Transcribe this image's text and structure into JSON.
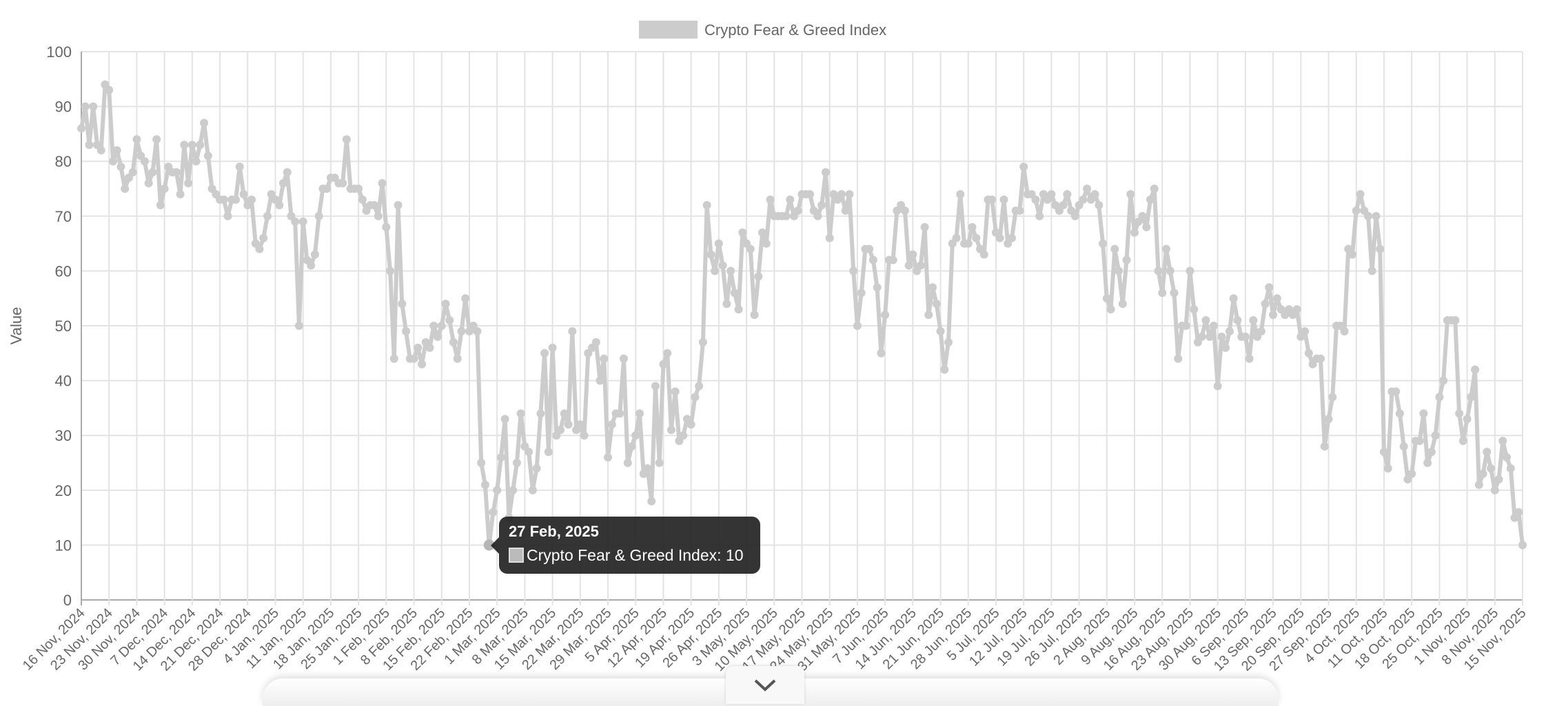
{
  "chart_data": {
    "type": "line",
    "legend": {
      "label": "Crypto Fear & Greed Index",
      "placement": "top-center"
    },
    "series_color": "#cccccc",
    "ylabel": "Value",
    "xlabel": "",
    "ylim": [
      0,
      100
    ],
    "y_ticks": [
      "0",
      "10",
      "20",
      "30",
      "40",
      "50",
      "60",
      "70",
      "80",
      "90",
      "100"
    ],
    "grid": true,
    "x_frequency": "daily",
    "x_tick_labels": [
      "16 Nov, 2024",
      "23 Nov, 2024",
      "30 Nov, 2024",
      "7 Dec, 2024",
      "14 Dec, 2024",
      "21 Dec, 2024",
      "28 Dec, 2024",
      "4 Jan, 2025",
      "11 Jan, 2025",
      "18 Jan, 2025",
      "25 Jan, 2025",
      "1 Feb, 2025",
      "8 Feb, 2025",
      "15 Feb, 2025",
      "22 Feb, 2025",
      "1 Mar, 2025",
      "8 Mar, 2025",
      "15 Mar, 2025",
      "22 Mar, 2025",
      "29 Mar, 2025",
      "5 Apr, 2025",
      "12 Apr, 2025",
      "19 Apr, 2025",
      "26 Apr, 2025",
      "3 May, 2025",
      "10 May, 2025",
      "17 May, 2025",
      "24 May, 2025",
      "31 May, 2025",
      "7 Jun, 2025",
      "14 Jun, 2025",
      "21 Jun, 2025",
      "28 Jun, 2025",
      "5 Jul, 2025",
      "12 Jul, 2025",
      "19 Jul, 2025",
      "26 Jul, 2025",
      "2 Aug, 2025",
      "9 Aug, 2025",
      "16 Aug, 2025",
      "23 Aug, 2025",
      "30 Aug, 2025",
      "6 Sep, 2025",
      "13 Sep, 2025",
      "20 Sep, 2025",
      "27 Sep, 2025",
      "4 Oct, 2025",
      "11 Oct, 2025",
      "18 Oct, 2025",
      "25 Oct, 2025",
      "1 Nov, 2025",
      "8 Nov, 2025",
      "15 Nov, 2025"
    ],
    "values": [
      86,
      90,
      83,
      90,
      83,
      82,
      94,
      93,
      80,
      82,
      79,
      75,
      77,
      78,
      84,
      81,
      80,
      76,
      78,
      84,
      72,
      75,
      79,
      78,
      78,
      74,
      83,
      76,
      83,
      80,
      83,
      87,
      81,
      75,
      74,
      73,
      73,
      70,
      73,
      73,
      79,
      74,
      72,
      73,
      65,
      64,
      66,
      70,
      74,
      73,
      72,
      76,
      78,
      70,
      69,
      50,
      69,
      62,
      61,
      63,
      70,
      75,
      75,
      77,
      77,
      76,
      76,
      84,
      75,
      75,
      75,
      73,
      71,
      72,
      72,
      70,
      76,
      68,
      60,
      44,
      72,
      54,
      49,
      44,
      44,
      46,
      43,
      47,
      46,
      50,
      48,
      50,
      54,
      51,
      47,
      44,
      49,
      55,
      49,
      50,
      49,
      25,
      21,
      10,
      16,
      20,
      26,
      33,
      15,
      20,
      25,
      34,
      28,
      27,
      20,
      24,
      34,
      45,
      27,
      46,
      30,
      31,
      34,
      32,
      49,
      31,
      32,
      30,
      45,
      46,
      47,
      40,
      44,
      26,
      32,
      34,
      34,
      44,
      25,
      28,
      30,
      34,
      23,
      24,
      18,
      39,
      25,
      43,
      45,
      31,
      38,
      29,
      30,
      33,
      32,
      37,
      39,
      47,
      72,
      63,
      60,
      65,
      61,
      54,
      60,
      56,
      53,
      67,
      65,
      64,
      52,
      59,
      67,
      65,
      73,
      70,
      70,
      70,
      70,
      73,
      70,
      71,
      74,
      74,
      74,
      71,
      70,
      72,
      78,
      66,
      74,
      73,
      74,
      71,
      74,
      60,
      50,
      56,
      64,
      64,
      62,
      57,
      45,
      52,
      62,
      62,
      71,
      72,
      71,
      61,
      63,
      60,
      61,
      68,
      52,
      57,
      54,
      49,
      42,
      47,
      65,
      66,
      74,
      65,
      65,
      68,
      66,
      64,
      63,
      73,
      73,
      67,
      66,
      73,
      65,
      66,
      71,
      71,
      79,
      74,
      74,
      73,
      70,
      74,
      73,
      74,
      72,
      71,
      72,
      74,
      71,
      70,
      72,
      73,
      75,
      73,
      74,
      72,
      65,
      55,
      53,
      64,
      60,
      54,
      62,
      74,
      67,
      69,
      70,
      68,
      73,
      75,
      60,
      56,
      64,
      60,
      56,
      44,
      50,
      50,
      60,
      53,
      47,
      48,
      51,
      48,
      50,
      39,
      48,
      46,
      49,
      55,
      51,
      48,
      48,
      44,
      51,
      48,
      49,
      54,
      57,
      52,
      55,
      53,
      52,
      53,
      52,
      53,
      48,
      49,
      45,
      43,
      44,
      44,
      28,
      33,
      37,
      50,
      50,
      49,
      64,
      63,
      71,
      74,
      71,
      70,
      60,
      70,
      64,
      27,
      24,
      38,
      38,
      34,
      28,
      22,
      23,
      29,
      29,
      34,
      25,
      27,
      30,
      37,
      40,
      51,
      51,
      51,
      34,
      29,
      33,
      37,
      42,
      21,
      23,
      27,
      24,
      20,
      22,
      29,
      26,
      24,
      15,
      16,
      10
    ],
    "highlighted_point": {
      "date": "27 Feb, 2025",
      "value": 10
    }
  },
  "tooltip": {
    "title": "27 Feb, 2025",
    "body": "Crypto Fear & Greed Index: 10"
  },
  "controls": {
    "scroll_icon": "chevron-down-icon"
  }
}
